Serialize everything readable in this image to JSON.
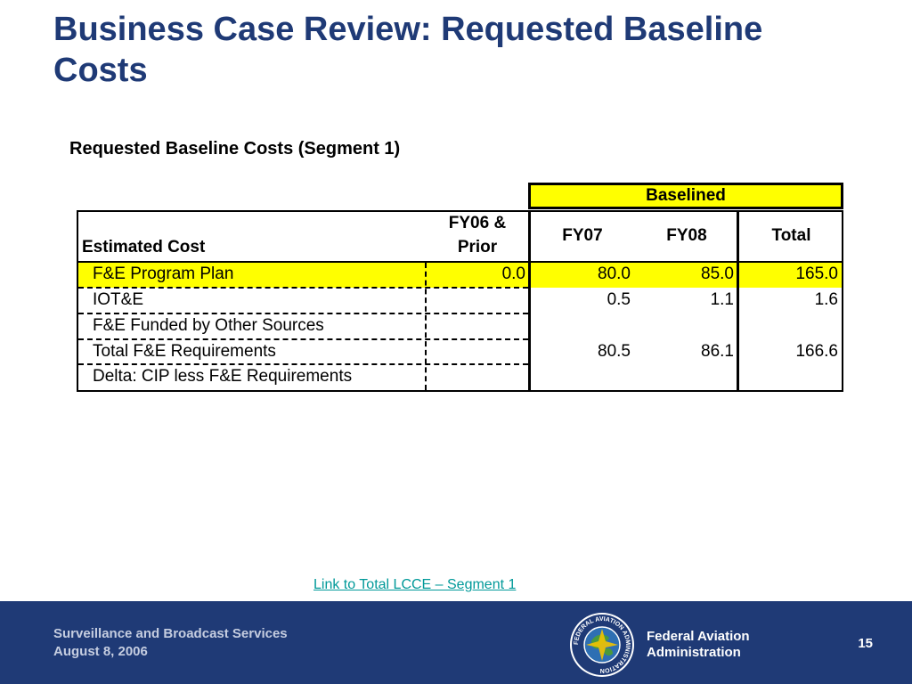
{
  "slide": {
    "title": "Business Case Review: Requested Baseline Costs",
    "table_heading": "Requested Baseline Costs (Segment 1)",
    "link_text": "Link to Total LCCE – Segment 1"
  },
  "table": {
    "group_header": "Baselined",
    "row_header_label": "Estimated Cost",
    "columns": {
      "prior_line1": "FY06 &",
      "prior_line2": "Prior",
      "fy07": "FY07",
      "fy08": "FY08",
      "total": "Total"
    },
    "rows": [
      {
        "label": "F&E Program Plan",
        "prior": "0.0",
        "fy07": "80.0",
        "fy08": "85.0",
        "total": "165.0"
      },
      {
        "label": "IOT&E",
        "prior": "",
        "fy07": "0.5",
        "fy08": "1.1",
        "total": "1.6"
      },
      {
        "label": "F&E Funded by Other Sources",
        "prior": "",
        "fy07": "",
        "fy08": "",
        "total": ""
      },
      {
        "label": "Total F&E Requirements",
        "prior": "",
        "fy07": "80.5",
        "fy08": "86.1",
        "total": "166.6"
      },
      {
        "label": "Delta: CIP less F&E Requirements",
        "prior": "",
        "fy07": "",
        "fy08": "",
        "total": ""
      }
    ],
    "highlight_color": "#ffff00"
  },
  "footer": {
    "program": "Surveillance and Broadcast Services",
    "date": "August 8, 2006",
    "agency_line1": "Federal Aviation",
    "agency_line2": "Administration",
    "page_number": "15",
    "seal_text": "FEDERAL AVIATION ADMINISTRATION",
    "background_color": "#1f3a76"
  }
}
